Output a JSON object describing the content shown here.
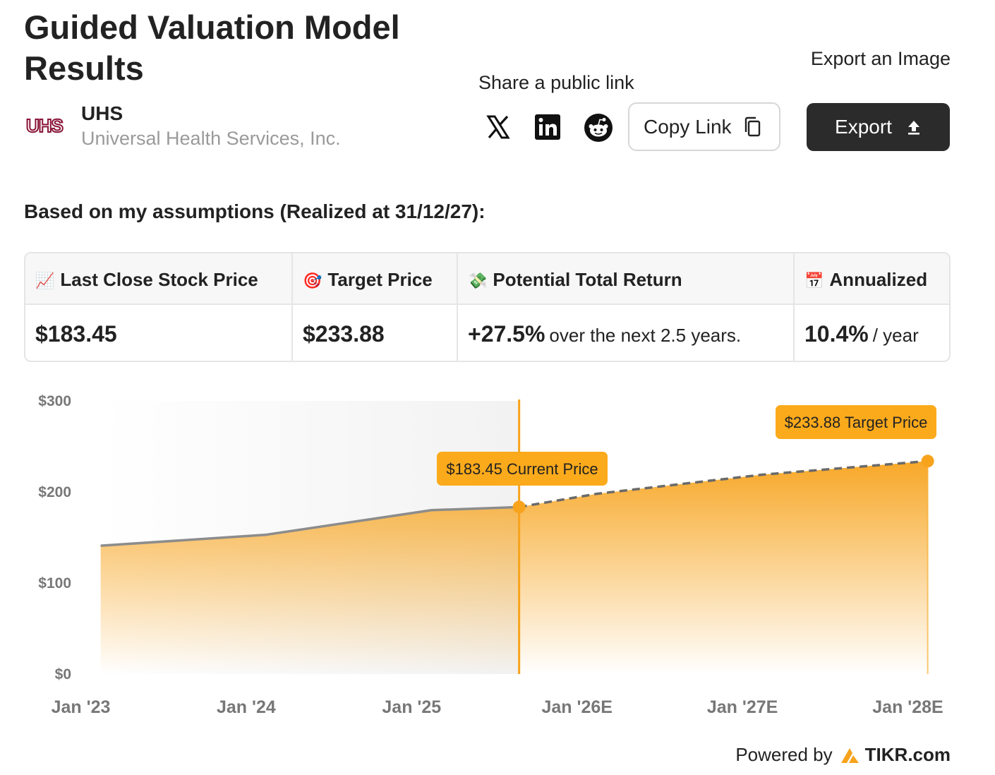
{
  "page": {
    "title": "Guided Valuation Model Results",
    "ticker": "UHS",
    "company_name": "Universal Health Services, Inc.",
    "logo_text": "UHS"
  },
  "share": {
    "label": "Share a public link",
    "icons": [
      "x-icon",
      "linkedin-icon",
      "reddit-icon"
    ],
    "copy_link_label": "Copy Link"
  },
  "export": {
    "label": "Export an Image",
    "button_label": "Export"
  },
  "assumptions_text": "Based on my assumptions (Realized at 31/12/27):",
  "metrics": [
    {
      "emoji": "📈",
      "label": "Last Close Stock Price",
      "value": "$183.45",
      "suffix": ""
    },
    {
      "emoji": "🎯",
      "label": "Target Price",
      "value": "$233.88",
      "suffix": ""
    },
    {
      "emoji": "💸",
      "label": "Potential Total Return",
      "value": "+27.5%",
      "suffix": "over the next 2.5 years."
    },
    {
      "emoji": "📅",
      "label": "Annualized",
      "value": "10.4%",
      "suffix": "/ year"
    }
  ],
  "chart_data": {
    "type": "area",
    "x_labels": [
      "Jan '23",
      "Jan '24",
      "Jan '25",
      "Jan '26E",
      "Jan '27E",
      "Jan '28E"
    ],
    "y_ticks": [
      "$0",
      "$100",
      "$200",
      "$300"
    ],
    "ylim": [
      0,
      300
    ],
    "historical": {
      "x": [
        0.12,
        1.12,
        2.12,
        2.65
      ],
      "y": [
        141,
        153,
        180,
        183.45
      ]
    },
    "projected": {
      "x": [
        2.65,
        3.12,
        4.12,
        5.12
      ],
      "y": [
        183.45,
        198,
        219,
        233.88
      ]
    },
    "current_price_label": "$183.45 Current Price",
    "target_price_label": "$233.88 Target Price",
    "colors": {
      "accent": "#f7a31c",
      "historical_line": "#8c8c8c",
      "projected_line": "#6a6a6a",
      "label_bg": "#fbaa1c",
      "shaded_bg": "#f2f2f2"
    }
  },
  "footer": {
    "powered_by": "Powered by",
    "brand": "TIKR.com"
  }
}
